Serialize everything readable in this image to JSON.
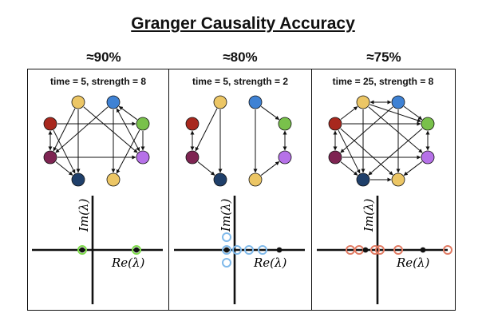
{
  "title": "Granger Causality Accuracy",
  "colors": {
    "red": "#a8281e",
    "yellow": "#ecc665",
    "blue": "#3f82d4",
    "green": "#79c14b",
    "violet": "#b671e8",
    "maroon": "#7e2452",
    "navy": "#1f3f6a",
    "green_marker": "#7ddb4a",
    "blue_marker": "#7fb9ea",
    "red_marker": "#e07a62"
  },
  "axis_labels": {
    "im": "Im(λ)",
    "re": "Re(λ)"
  },
  "panels": [
    {
      "accuracy": "≈90%",
      "params": "time = 5, strength = 8"
    },
    {
      "accuracy": "≈80%",
      "params": "time = 5, strength = 2"
    },
    {
      "accuracy": "≈75%",
      "params": "time = 25, strength = 8"
    }
  ]
}
